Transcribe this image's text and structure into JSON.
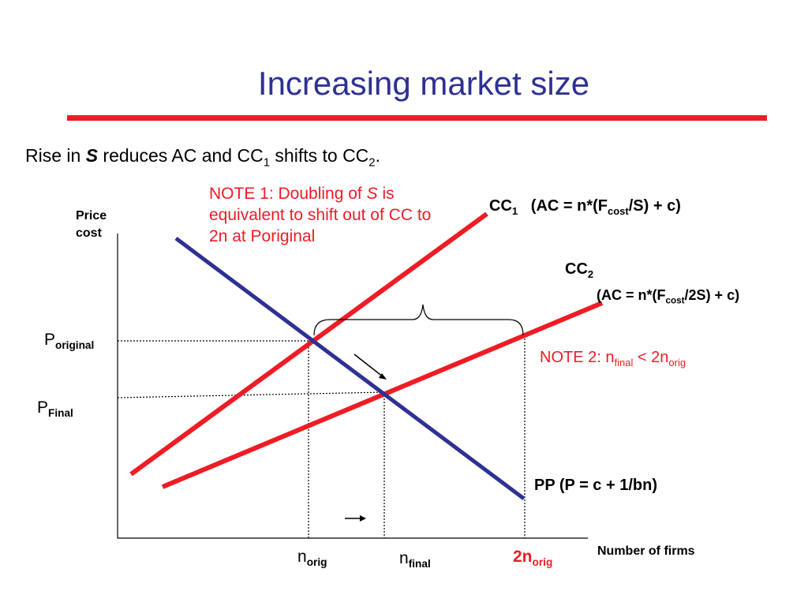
{
  "title": "Increasing market size",
  "subtitle": {
    "pre": "Rise in ",
    "emph": "S",
    "mid": " reduces AC and CC",
    "sub1": "1",
    "post": " shifts to CC",
    "sub2": "2",
    "end": "."
  },
  "note1": {
    "pre": "NOTE 1: Doubling of ",
    "emph": "S",
    "post": " is equivalent to shift out of CC to 2n at Poriginal"
  },
  "note2": {
    "pre": "NOTE 2: n",
    "sub1": "final",
    "mid": " < 2n",
    "sub2": "orig"
  },
  "curves": {
    "cc1": {
      "name": "CC",
      "sub": "1",
      "eq_pre": "(AC = n*(F",
      "eq_sub": "cost",
      "eq_post": "/S) + c)"
    },
    "cc2": {
      "name": "CC",
      "sub": "2",
      "eq_pre": "(AC = n*(F",
      "eq_sub": "cost",
      "eq_post": "/2S) + c)"
    },
    "pp": {
      "label": "PP  (P = c + 1/bn)"
    }
  },
  "axes": {
    "y_label": "Price cost",
    "x_label": "Number of firms"
  },
  "y_ticks": {
    "p_original": {
      "main": "P",
      "sub": "original"
    },
    "p_final": {
      "main": "P",
      "sub": "Final"
    }
  },
  "x_ticks": {
    "n_orig": {
      "main": "n",
      "sub": "orig"
    },
    "n_final": {
      "main": "n",
      "sub": "final"
    },
    "two_n_orig": {
      "main": "2n",
      "sub": "orig"
    }
  },
  "colors": {
    "title": "#2e3192",
    "accent_red": "#ee1c25",
    "pp_line": "#2e3192"
  }
}
